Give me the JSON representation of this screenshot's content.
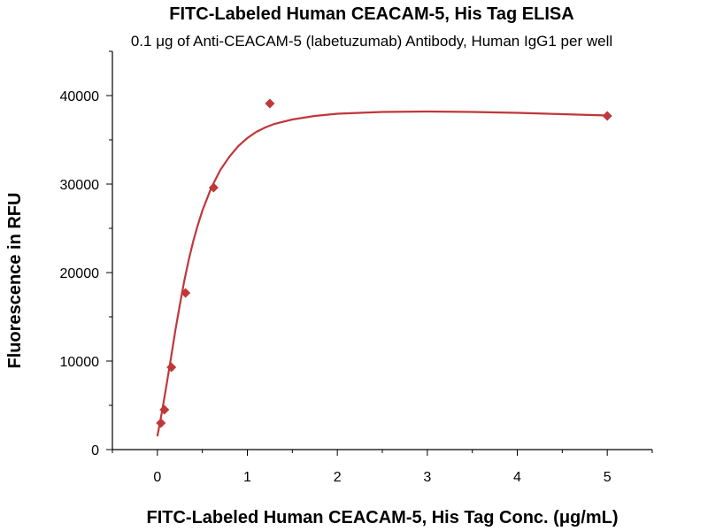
{
  "chart_data": {
    "type": "scatter",
    "title": "FITC-Labeled Human CEACAM-5, His Tag ELISA",
    "subtitle": "0.1 μg of Anti-CEACAM-5 (labetuzumab) Antibody, Human IgG1 per well",
    "xlabel": "FITC-Labeled Human CEACAM-5, His Tag Conc. (μg/mL)",
    "ylabel": "Fluorescence in RFU",
    "xlim": [
      -0.5,
      5.5
    ],
    "ylim": [
      0,
      45000
    ],
    "x_ticks": [
      0,
      1,
      2,
      3,
      4,
      5
    ],
    "y_ticks": [
      0,
      10000,
      20000,
      30000,
      40000
    ],
    "grid": false,
    "series": [
      {
        "x": [
          0.039,
          0.078,
          0.156,
          0.313,
          0.625,
          1.25,
          5
        ],
        "y": [
          3000,
          4500,
          9300,
          17700,
          29600,
          39100,
          37700
        ]
      }
    ],
    "fit_curve": {
      "x": [
        0,
        0.05,
        0.1,
        0.15,
        0.2,
        0.25,
        0.3,
        0.35,
        0.4,
        0.45,
        0.5,
        0.6,
        0.7,
        0.8,
        0.9,
        1.0,
        1.1,
        1.2,
        1.3,
        1.5,
        1.75,
        2.0,
        2.5,
        3.0,
        3.5,
        4.0,
        4.5,
        5.0
      ],
      "y": [
        1500,
        4200,
        7200,
        10300,
        13500,
        16400,
        19100,
        21500,
        23600,
        25400,
        27000,
        29600,
        31600,
        33100,
        34300,
        35200,
        35900,
        36400,
        36800,
        37300,
        37700,
        37950,
        38150,
        38200,
        38150,
        38050,
        37900,
        37750
      ]
    },
    "colors": {
      "marker": "#C0373A",
      "curve": "#C0373A"
    }
  }
}
